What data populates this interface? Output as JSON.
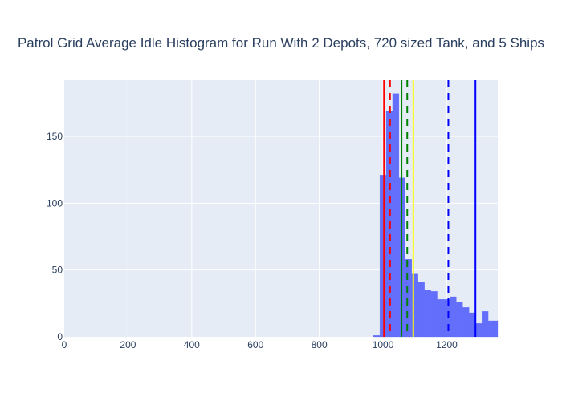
{
  "chart_data": {
    "type": "bar",
    "title": "Patrol Grid Average Idle Histogram for Run With 2 Depots, 720 sized Tank, and 5 Ships",
    "xlabel": "",
    "ylabel": "",
    "xlim": [
      0,
      1360
    ],
    "ylim": [
      0,
      192
    ],
    "x_ticks": [
      0,
      200,
      400,
      600,
      800,
      1000,
      1200
    ],
    "y_ticks": [
      0,
      50,
      100,
      150
    ],
    "grid": true,
    "legend": "none",
    "bin_width": 10,
    "series": [
      {
        "bin_starts": [
          970,
          980,
          990,
          1000,
          1010,
          1020,
          1030,
          1040,
          1050,
          1060,
          1070,
          1080,
          1090,
          1100,
          1110,
          1120,
          1130,
          1140,
          1150,
          1160,
          1170,
          1180,
          1190,
          1200,
          1210,
          1220,
          1230,
          1240,
          1250,
          1260,
          1270,
          1280,
          1290,
          1300,
          1310,
          1320,
          1330,
          1340,
          1350
        ],
        "values": [
          1,
          1,
          121,
          121,
          169,
          169,
          182,
          182,
          119,
          119,
          58,
          58,
          47,
          47,
          41,
          41,
          35,
          35,
          34,
          34,
          28,
          28,
          28,
          28,
          30,
          30,
          26,
          26,
          22,
          22,
          18,
          18,
          10,
          10,
          19,
          19,
          12,
          12,
          12
        ]
      }
    ],
    "vlines": [
      {
        "x": 1003,
        "color": "#ff0000",
        "style": "solid"
      },
      {
        "x": 1022,
        "color": "#ff0000",
        "style": "dash"
      },
      {
        "x": 1058,
        "color": "#008000",
        "style": "solid"
      },
      {
        "x": 1076,
        "color": "#008000",
        "style": "dash"
      },
      {
        "x": 1095,
        "color": "#ffff00",
        "style": "solid"
      },
      {
        "x": 1205,
        "color": "#0000ff",
        "style": "dash"
      },
      {
        "x": 1290,
        "color": "#0000ff",
        "style": "solid"
      }
    ],
    "colors": {
      "bar": "#636efa",
      "plot_bg": "#e5ecf6",
      "grid": "#ffffff",
      "text": "#2a3f5f"
    }
  }
}
